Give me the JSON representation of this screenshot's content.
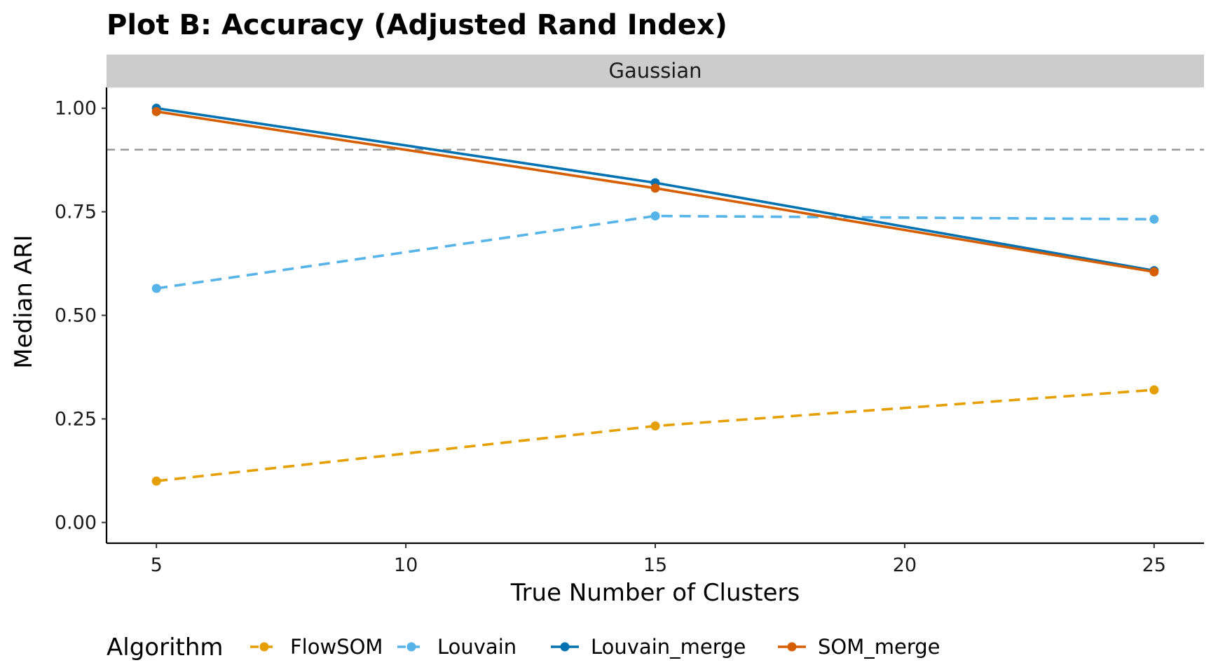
{
  "chart_data": {
    "type": "line",
    "title": "Plot B: Accuracy (Adjusted Rand Index)",
    "facet": "Gaussian",
    "xlabel": "True Number of Clusters",
    "ylabel": "Median ARI",
    "xlim": [
      4,
      26
    ],
    "ylim": [
      -0.05,
      1.05
    ],
    "xticks": [
      5,
      10,
      15,
      20,
      25
    ],
    "xtick_labels": [
      "5",
      "10",
      "15",
      "20",
      "25"
    ],
    "yticks": [
      0,
      0.25,
      0.5,
      0.75,
      1.0
    ],
    "ytick_labels": [
      "0.00",
      "0.25",
      "0.50",
      "0.75",
      "1.00"
    ],
    "reference_line": {
      "y": 0.9,
      "style": "dashed",
      "color": "#999999"
    },
    "grid": false,
    "legend": {
      "title": "Algorithm",
      "position": "bottom"
    },
    "series": [
      {
        "name": "FlowSOM",
        "color": "#E69F00",
        "dash": "dashed",
        "x": [
          5,
          15,
          25
        ],
        "y": [
          0.1,
          0.233,
          0.32
        ]
      },
      {
        "name": "Louvain",
        "color": "#56B4E9",
        "dash": "dashed",
        "x": [
          5,
          15,
          25
        ],
        "y": [
          0.565,
          0.74,
          0.732
        ]
      },
      {
        "name": "Louvain_merge",
        "color": "#0072B2",
        "dash": "solid",
        "x": [
          5,
          15,
          25
        ],
        "y": [
          1.0,
          0.82,
          0.608
        ]
      },
      {
        "name": "SOM_merge",
        "color": "#D55E00",
        "dash": "solid",
        "x": [
          5,
          15,
          25
        ],
        "y": [
          0.992,
          0.807,
          0.605
        ]
      }
    ]
  }
}
